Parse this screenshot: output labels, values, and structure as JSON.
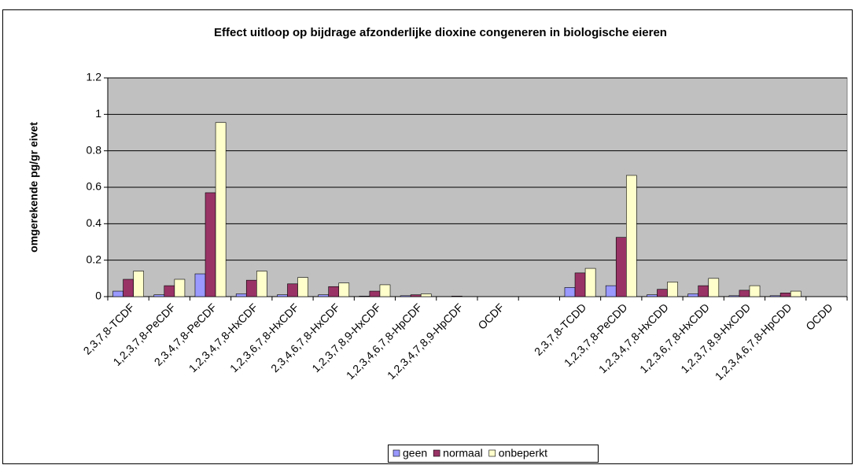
{
  "chart_data": {
    "type": "bar",
    "title": "Effect uitloop op bijdrage afzonderlijke dioxine congeneren in biologische eieren",
    "y_label": "omgerekende pg/gr eivet",
    "categories": [
      "2,3,7,8-TCDF",
      "1,2,3,7,8-PeCDF",
      "2,3,4,7,8-PeCDF",
      "1,2,3,4,7,8-HxCDF",
      "1,2,3,6,7,8-HxCDF",
      "2,3,4,6,7,8-HxCDF",
      "1,2,3,7,8,9-HxCDF",
      "1,2,3,4,6,7,8-HpCDF",
      "1,2,3,4,7,8,9-HpCDF",
      "OCDF",
      null,
      "2,3,7,8-TCDD",
      "1,2,3,7,8-PeCDD",
      "1,2,3,4,7,8-HxCDD",
      "1,2,3,6,7,8-HxCDD",
      "1,2,3,7,8,9-HxCDD",
      "1,2,3,4,6,7,8-HpCDD",
      "OCDD"
    ],
    "series": [
      {
        "name": "geen",
        "color": "#9999ff",
        "values": [
          0.03,
          0.01,
          0.125,
          0.015,
          0.01,
          0.01,
          0.003,
          0.005,
          0,
          0,
          null,
          0.05,
          0.06,
          0.01,
          0.015,
          0.005,
          0.005,
          0
        ]
      },
      {
        "name": "normaal",
        "color": "#993366",
        "values": [
          0.095,
          0.06,
          0.57,
          0.09,
          0.07,
          0.055,
          0.03,
          0.01,
          0.003,
          0,
          null,
          0.13,
          0.325,
          0.04,
          0.06,
          0.035,
          0.02,
          0
        ]
      },
      {
        "name": "onbeperkt",
        "color": "#ffffcc",
        "values": [
          0.14,
          0.095,
          0.955,
          0.14,
          0.105,
          0.075,
          0.065,
          0.015,
          0,
          0,
          null,
          0.155,
          0.665,
          0.08,
          0.1,
          0.06,
          0.03,
          0
        ]
      }
    ],
    "ylim": [
      0,
      1.2
    ],
    "yticks": [
      0,
      0.2,
      0.4,
      0.6,
      0.8,
      1,
      1.2
    ],
    "grid": true,
    "legend": "bottom"
  }
}
